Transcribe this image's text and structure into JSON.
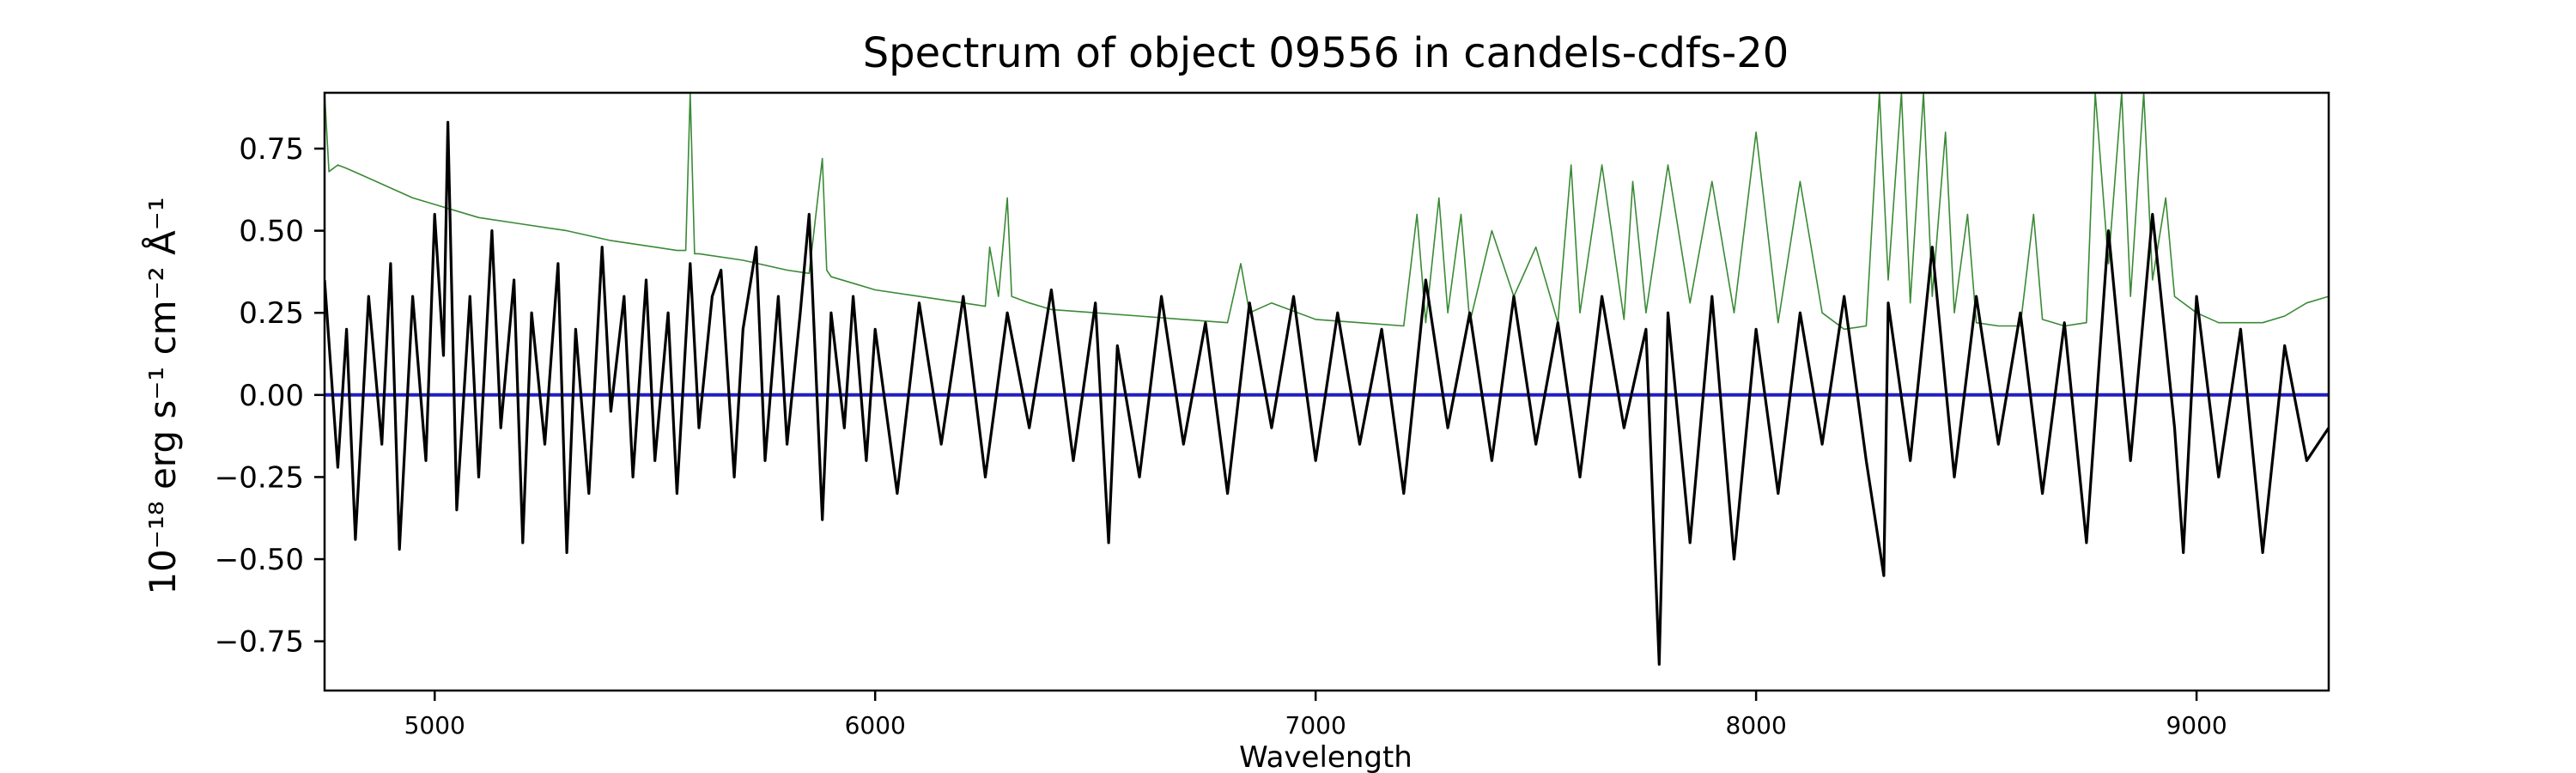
{
  "chart_data": {
    "type": "line",
    "title": "Spectrum of object 09556 in candels-cdfs-20",
    "xlabel": "Wavelength",
    "ylabel": "10⁻¹⁸ erg s⁻¹ cm⁻² Å⁻¹",
    "xlim": [
      4750,
      9300
    ],
    "ylim": [
      -0.9,
      0.92
    ],
    "x_ticks": [
      5000,
      6000,
      7000,
      8000,
      9000
    ],
    "y_ticks": [
      -0.75,
      -0.5,
      -0.25,
      0.0,
      0.25,
      0.5,
      0.75
    ],
    "y_tick_labels": [
      "−0.75",
      "−0.50",
      "−0.25",
      "0.00",
      "0.25",
      "0.50",
      "0.75"
    ],
    "grid": false,
    "series": [
      {
        "color": "#000000",
        "x": [
          4750,
          4780,
          4800,
          4820,
          4850,
          4880,
          4900,
          4920,
          4950,
          4980,
          5000,
          5020,
          5030,
          5050,
          5080,
          5100,
          5130,
          5150,
          5180,
          5200,
          5220,
          5250,
          5280,
          5300,
          5320,
          5350,
          5380,
          5400,
          5430,
          5450,
          5480,
          5500,
          5530,
          5550,
          5580,
          5600,
          5630,
          5650,
          5680,
          5700,
          5730,
          5750,
          5780,
          5800,
          5830,
          5850,
          5880,
          5900,
          5930,
          5950,
          5980,
          6000,
          6050,
          6100,
          6150,
          6200,
          6250,
          6300,
          6350,
          6400,
          6450,
          6500,
          6530,
          6550,
          6600,
          6650,
          6700,
          6750,
          6800,
          6850,
          6900,
          6950,
          7000,
          7050,
          7100,
          7150,
          7200,
          7250,
          7300,
          7350,
          7400,
          7450,
          7500,
          7550,
          7600,
          7650,
          7700,
          7750,
          7780,
          7800,
          7850,
          7900,
          7950,
          8000,
          8050,
          8100,
          8150,
          8200,
          8250,
          8290,
          8300,
          8350,
          8400,
          8450,
          8500,
          8550,
          8600,
          8650,
          8700,
          8750,
          8800,
          8850,
          8900,
          8950,
          8970,
          9000,
          9050,
          9100,
          9150,
          9200,
          9250,
          9300
        ],
        "y": [
          0.35,
          -0.22,
          0.2,
          -0.44,
          0.3,
          -0.15,
          0.4,
          -0.47,
          0.3,
          -0.2,
          0.55,
          0.12,
          0.83,
          -0.35,
          0.3,
          -0.25,
          0.5,
          -0.1,
          0.35,
          -0.45,
          0.25,
          -0.15,
          0.4,
          -0.48,
          0.2,
          -0.3,
          0.45,
          -0.05,
          0.3,
          -0.25,
          0.35,
          -0.2,
          0.25,
          -0.3,
          0.4,
          -0.1,
          0.3,
          0.38,
          -0.25,
          0.2,
          0.45,
          -0.2,
          0.3,
          -0.15,
          0.25,
          0.55,
          -0.38,
          0.25,
          -0.1,
          0.3,
          -0.2,
          0.2,
          -0.3,
          0.28,
          -0.15,
          0.3,
          -0.25,
          0.25,
          -0.1,
          0.32,
          -0.2,
          0.28,
          -0.45,
          0.15,
          -0.25,
          0.3,
          -0.15,
          0.22,
          -0.3,
          0.28,
          -0.1,
          0.3,
          -0.2,
          0.25,
          -0.15,
          0.2,
          -0.3,
          0.35,
          -0.1,
          0.25,
          -0.2,
          0.3,
          -0.15,
          0.22,
          -0.25,
          0.3,
          -0.1,
          0.2,
          -0.82,
          0.25,
          -0.45,
          0.3,
          -0.5,
          0.2,
          -0.3,
          0.25,
          -0.15,
          0.3,
          -0.2,
          -0.55,
          0.28,
          -0.2,
          0.45,
          -0.25,
          0.3,
          -0.15,
          0.25,
          -0.3,
          0.22,
          -0.45,
          0.5,
          -0.2,
          0.55,
          -0.1,
          -0.48,
          0.3,
          -0.25,
          0.2,
          -0.48,
          0.15,
          -0.2,
          -0.1
        ]
      },
      {
        "color": "#3a8a35",
        "x": [
          4750,
          4760,
          4780,
          4800,
          4850,
          4900,
          4950,
          5000,
          5050,
          5100,
          5200,
          5300,
          5400,
          5500,
          5550,
          5570,
          5580,
          5590,
          5600,
          5700,
          5800,
          5850,
          5880,
          5890,
          5900,
          5950,
          6000,
          6100,
          6200,
          6250,
          6260,
          6280,
          6300,
          6310,
          6350,
          6400,
          6500,
          6600,
          6700,
          6800,
          6830,
          6850,
          6900,
          7000,
          7100,
          7200,
          7230,
          7250,
          7280,
          7300,
          7330,
          7350,
          7400,
          7450,
          7500,
          7550,
          7580,
          7600,
          7650,
          7700,
          7720,
          7750,
          7800,
          7850,
          7900,
          7950,
          8000,
          8050,
          8100,
          8150,
          8200,
          8250,
          8280,
          8300,
          8330,
          8350,
          8380,
          8400,
          8430,
          8450,
          8480,
          8500,
          8550,
          8600,
          8630,
          8650,
          8700,
          8750,
          8770,
          8800,
          8830,
          8850,
          8880,
          8900,
          8930,
          8950,
          9000,
          9050,
          9100,
          9150,
          9200,
          9250,
          9300
        ],
        "y": [
          0.92,
          0.68,
          0.7,
          0.69,
          0.66,
          0.63,
          0.6,
          0.58,
          0.56,
          0.54,
          0.52,
          0.5,
          0.47,
          0.45,
          0.44,
          0.44,
          0.92,
          0.43,
          0.43,
          0.41,
          0.38,
          0.37,
          0.72,
          0.38,
          0.36,
          0.34,
          0.32,
          0.3,
          0.28,
          0.27,
          0.45,
          0.3,
          0.6,
          0.3,
          0.28,
          0.26,
          0.25,
          0.24,
          0.23,
          0.22,
          0.4,
          0.25,
          0.28,
          0.23,
          0.22,
          0.21,
          0.55,
          0.22,
          0.6,
          0.25,
          0.55,
          0.22,
          0.5,
          0.3,
          0.45,
          0.22,
          0.7,
          0.25,
          0.7,
          0.23,
          0.65,
          0.25,
          0.7,
          0.28,
          0.65,
          0.25,
          0.8,
          0.22,
          0.65,
          0.25,
          0.2,
          0.21,
          0.92,
          0.35,
          0.92,
          0.28,
          0.92,
          0.3,
          0.8,
          0.25,
          0.55,
          0.22,
          0.21,
          0.21,
          0.55,
          0.23,
          0.21,
          0.22,
          0.92,
          0.4,
          0.92,
          0.3,
          0.92,
          0.35,
          0.6,
          0.3,
          0.25,
          0.22,
          0.22,
          0.22,
          0.24,
          0.28,
          0.3
        ]
      },
      {
        "color": "#1f1fc4",
        "x": [
          4750,
          9300
        ],
        "y": [
          0.0,
          0.0
        ]
      }
    ]
  }
}
